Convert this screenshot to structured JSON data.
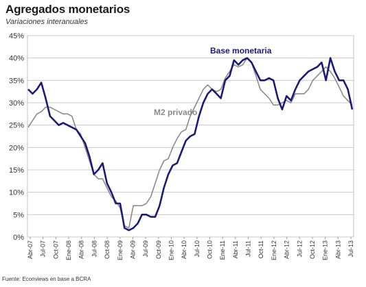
{
  "chart_data": {
    "type": "line",
    "title": "Agregados monetarios",
    "subtitle": "Variaciones interanuales",
    "source": "Fuente: Econviews en base a BCRA",
    "yticks": [
      "0%",
      "5%",
      "10%",
      "15%",
      "20%",
      "25%",
      "30%",
      "35%",
      "40%",
      "45%"
    ],
    "ylim": [
      0,
      45
    ],
    "xticks": [
      "Abr-07",
      "Jul-07",
      "Oct-07",
      "Ene-08",
      "Abr-08",
      "Jul-08",
      "Oct-08",
      "Ene-09",
      "Abr-09",
      "Jul-09",
      "Oct-09",
      "Ene-10",
      "Abr-10",
      "Jul-10",
      "Oct-10",
      "Ene-11",
      "Abr-11",
      "Jul-11",
      "Oct-11",
      "Ene-12",
      "Abr-12",
      "Jul-12",
      "Oct-12",
      "Ene-13",
      "Abr-13",
      "Jul-13"
    ],
    "grid": true,
    "series": [
      {
        "name": "Base monetaria",
        "color": "#1a1a7a",
        "values": [
          33,
          32,
          33,
          34.5,
          31,
          27,
          26,
          25,
          25.5,
          25,
          24.5,
          24,
          22.5,
          21,
          18,
          14,
          15,
          16.5,
          12,
          10,
          7.5,
          7.5,
          2,
          1.5,
          2,
          3,
          5,
          5,
          4.5,
          4.5,
          7,
          11,
          14,
          16,
          16.5,
          19,
          21.5,
          22.5,
          23,
          27,
          30,
          32,
          33,
          32,
          31,
          35,
          36,
          39.5,
          38.5,
          39.5,
          40,
          39,
          37,
          35,
          35,
          35.5,
          35,
          31,
          28.5,
          31.5,
          30.5,
          33,
          35,
          36,
          37,
          37.5,
          38,
          39,
          35,
          40,
          37,
          35,
          35,
          33,
          28.5
        ]
      },
      {
        "name": "M2 privado",
        "color": "#8a8a8a",
        "values": [
          24.5,
          26,
          27.5,
          28,
          29,
          29,
          28.5,
          28,
          27.5,
          27.5,
          27,
          24,
          23,
          20,
          17,
          14,
          13,
          13,
          11,
          9,
          8,
          6.5,
          2.5,
          2,
          7,
          7,
          7,
          7.5,
          9,
          12,
          15,
          17,
          17.5,
          20,
          22,
          23.5,
          24,
          27,
          29,
          31,
          33,
          34,
          33,
          32.5,
          33,
          35.5,
          37,
          38.5,
          38,
          38.5,
          40,
          39,
          36,
          33,
          32,
          31,
          29.5,
          29.5,
          30,
          30.5,
          30,
          32,
          32,
          32,
          33,
          35,
          36,
          37,
          38,
          37,
          35.5,
          33.5,
          31.5,
          30.5,
          29.5
        ]
      }
    ]
  }
}
